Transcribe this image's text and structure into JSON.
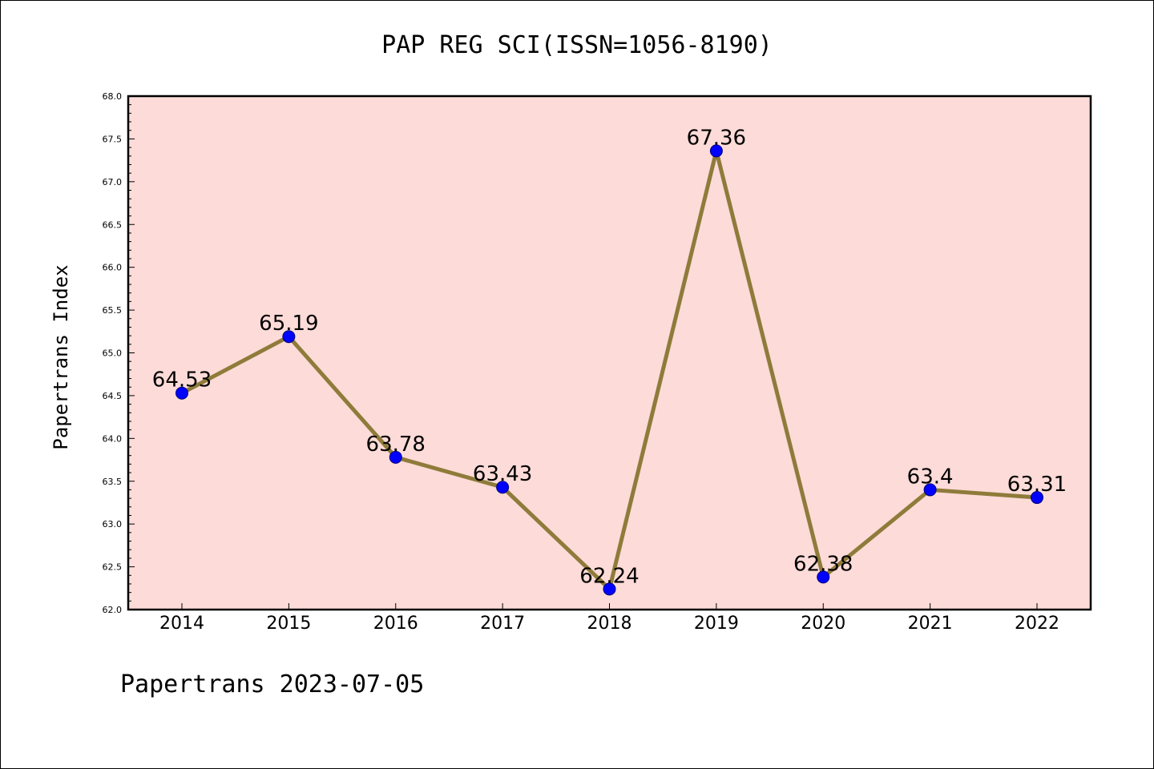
{
  "chart_data": {
    "type": "line",
    "title": "PAP REG SCI(ISSN=1056-8190)",
    "xlabel": "",
    "ylabel": "Papertrans Index",
    "categories": [
      "2014",
      "2015",
      "2016",
      "2017",
      "2018",
      "2019",
      "2020",
      "2021",
      "2022"
    ],
    "series": [
      {
        "values": [
          64.53,
          65.19,
          63.78,
          63.43,
          62.24,
          67.36,
          62.38,
          63.4,
          63.31
        ],
        "labels": [
          "64.53",
          "65.19",
          "63.78",
          "63.43",
          "62.24",
          "67.36",
          "62.38",
          "63.4",
          "63.31"
        ]
      }
    ],
    "ylim": [
      62.0,
      68.0
    ],
    "yticks": [
      "62.0",
      "62.5",
      "63.0",
      "63.5",
      "64.0",
      "64.5",
      "65.0",
      "65.5",
      "66.0",
      "66.5",
      "67.0",
      "67.5",
      "68.0"
    ],
    "grid": false,
    "legend": "none",
    "colors": {
      "plot_background": "#fddbd8",
      "line": "#8f7b3a",
      "marker": "#0000ff",
      "axes": "#000000"
    }
  },
  "footer": {
    "text": "Papertrans 2023-07-05"
  }
}
